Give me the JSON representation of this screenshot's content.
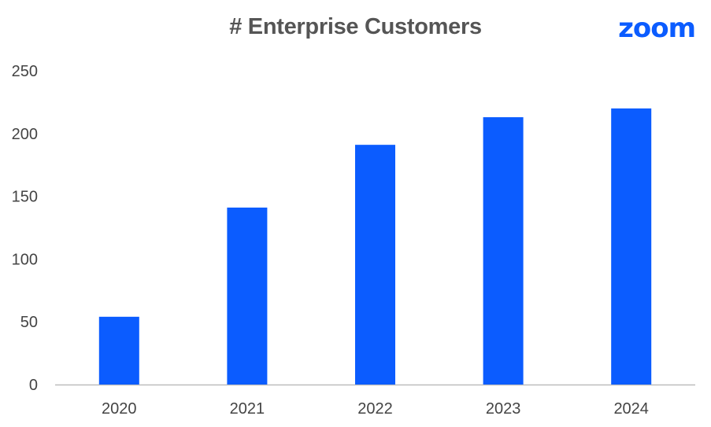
{
  "brand": {
    "logo_text": "zoom",
    "accent_color": "#0b5cff"
  },
  "chart_data": {
    "type": "bar",
    "title": "# Enterprise Customers",
    "xlabel": "",
    "ylabel": "",
    "categories": [
      "2020",
      "2021",
      "2022",
      "2023",
      "2024"
    ],
    "values": [
      54,
      141,
      191,
      213,
      220
    ],
    "ylim": [
      0,
      250
    ],
    "yticks": [
      "0",
      "50",
      "100",
      "150",
      "200",
      "250"
    ],
    "bar_color": "#0b5cff",
    "grid": false,
    "legend": "none"
  }
}
